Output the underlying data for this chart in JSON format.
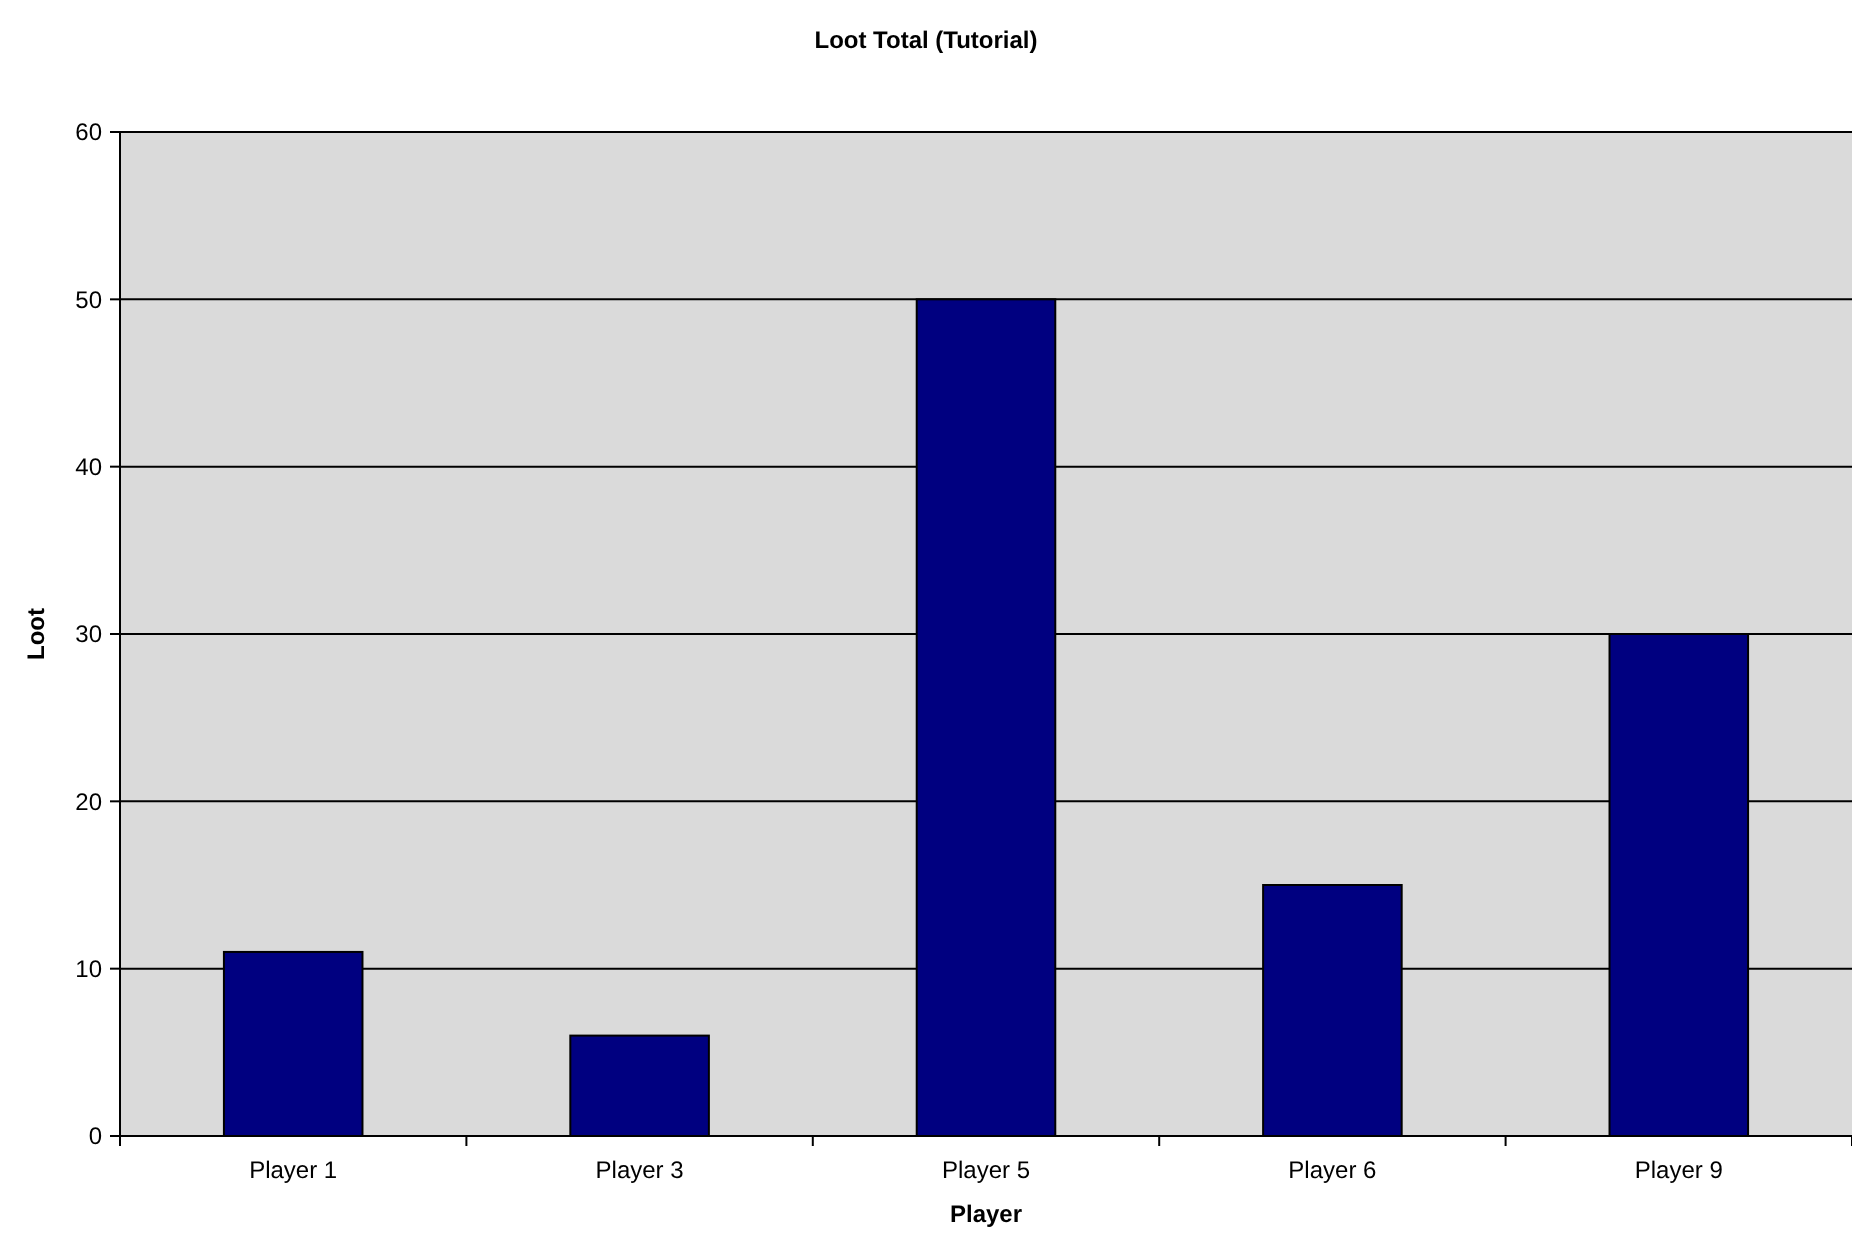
{
  "chart_data": {
    "type": "bar",
    "title": "Loot Total (Tutorial)",
    "xlabel": "Player",
    "ylabel": "Loot",
    "categories": [
      "Player 1",
      "Player 3",
      "Player 5",
      "Player 6",
      "Player 9"
    ],
    "values": [
      11,
      6,
      50,
      15,
      30
    ],
    "color": "#000080",
    "ylim": [
      0,
      60
    ],
    "yticks": [
      0,
      10,
      20,
      30,
      40,
      50,
      60
    ],
    "grid": "y"
  }
}
